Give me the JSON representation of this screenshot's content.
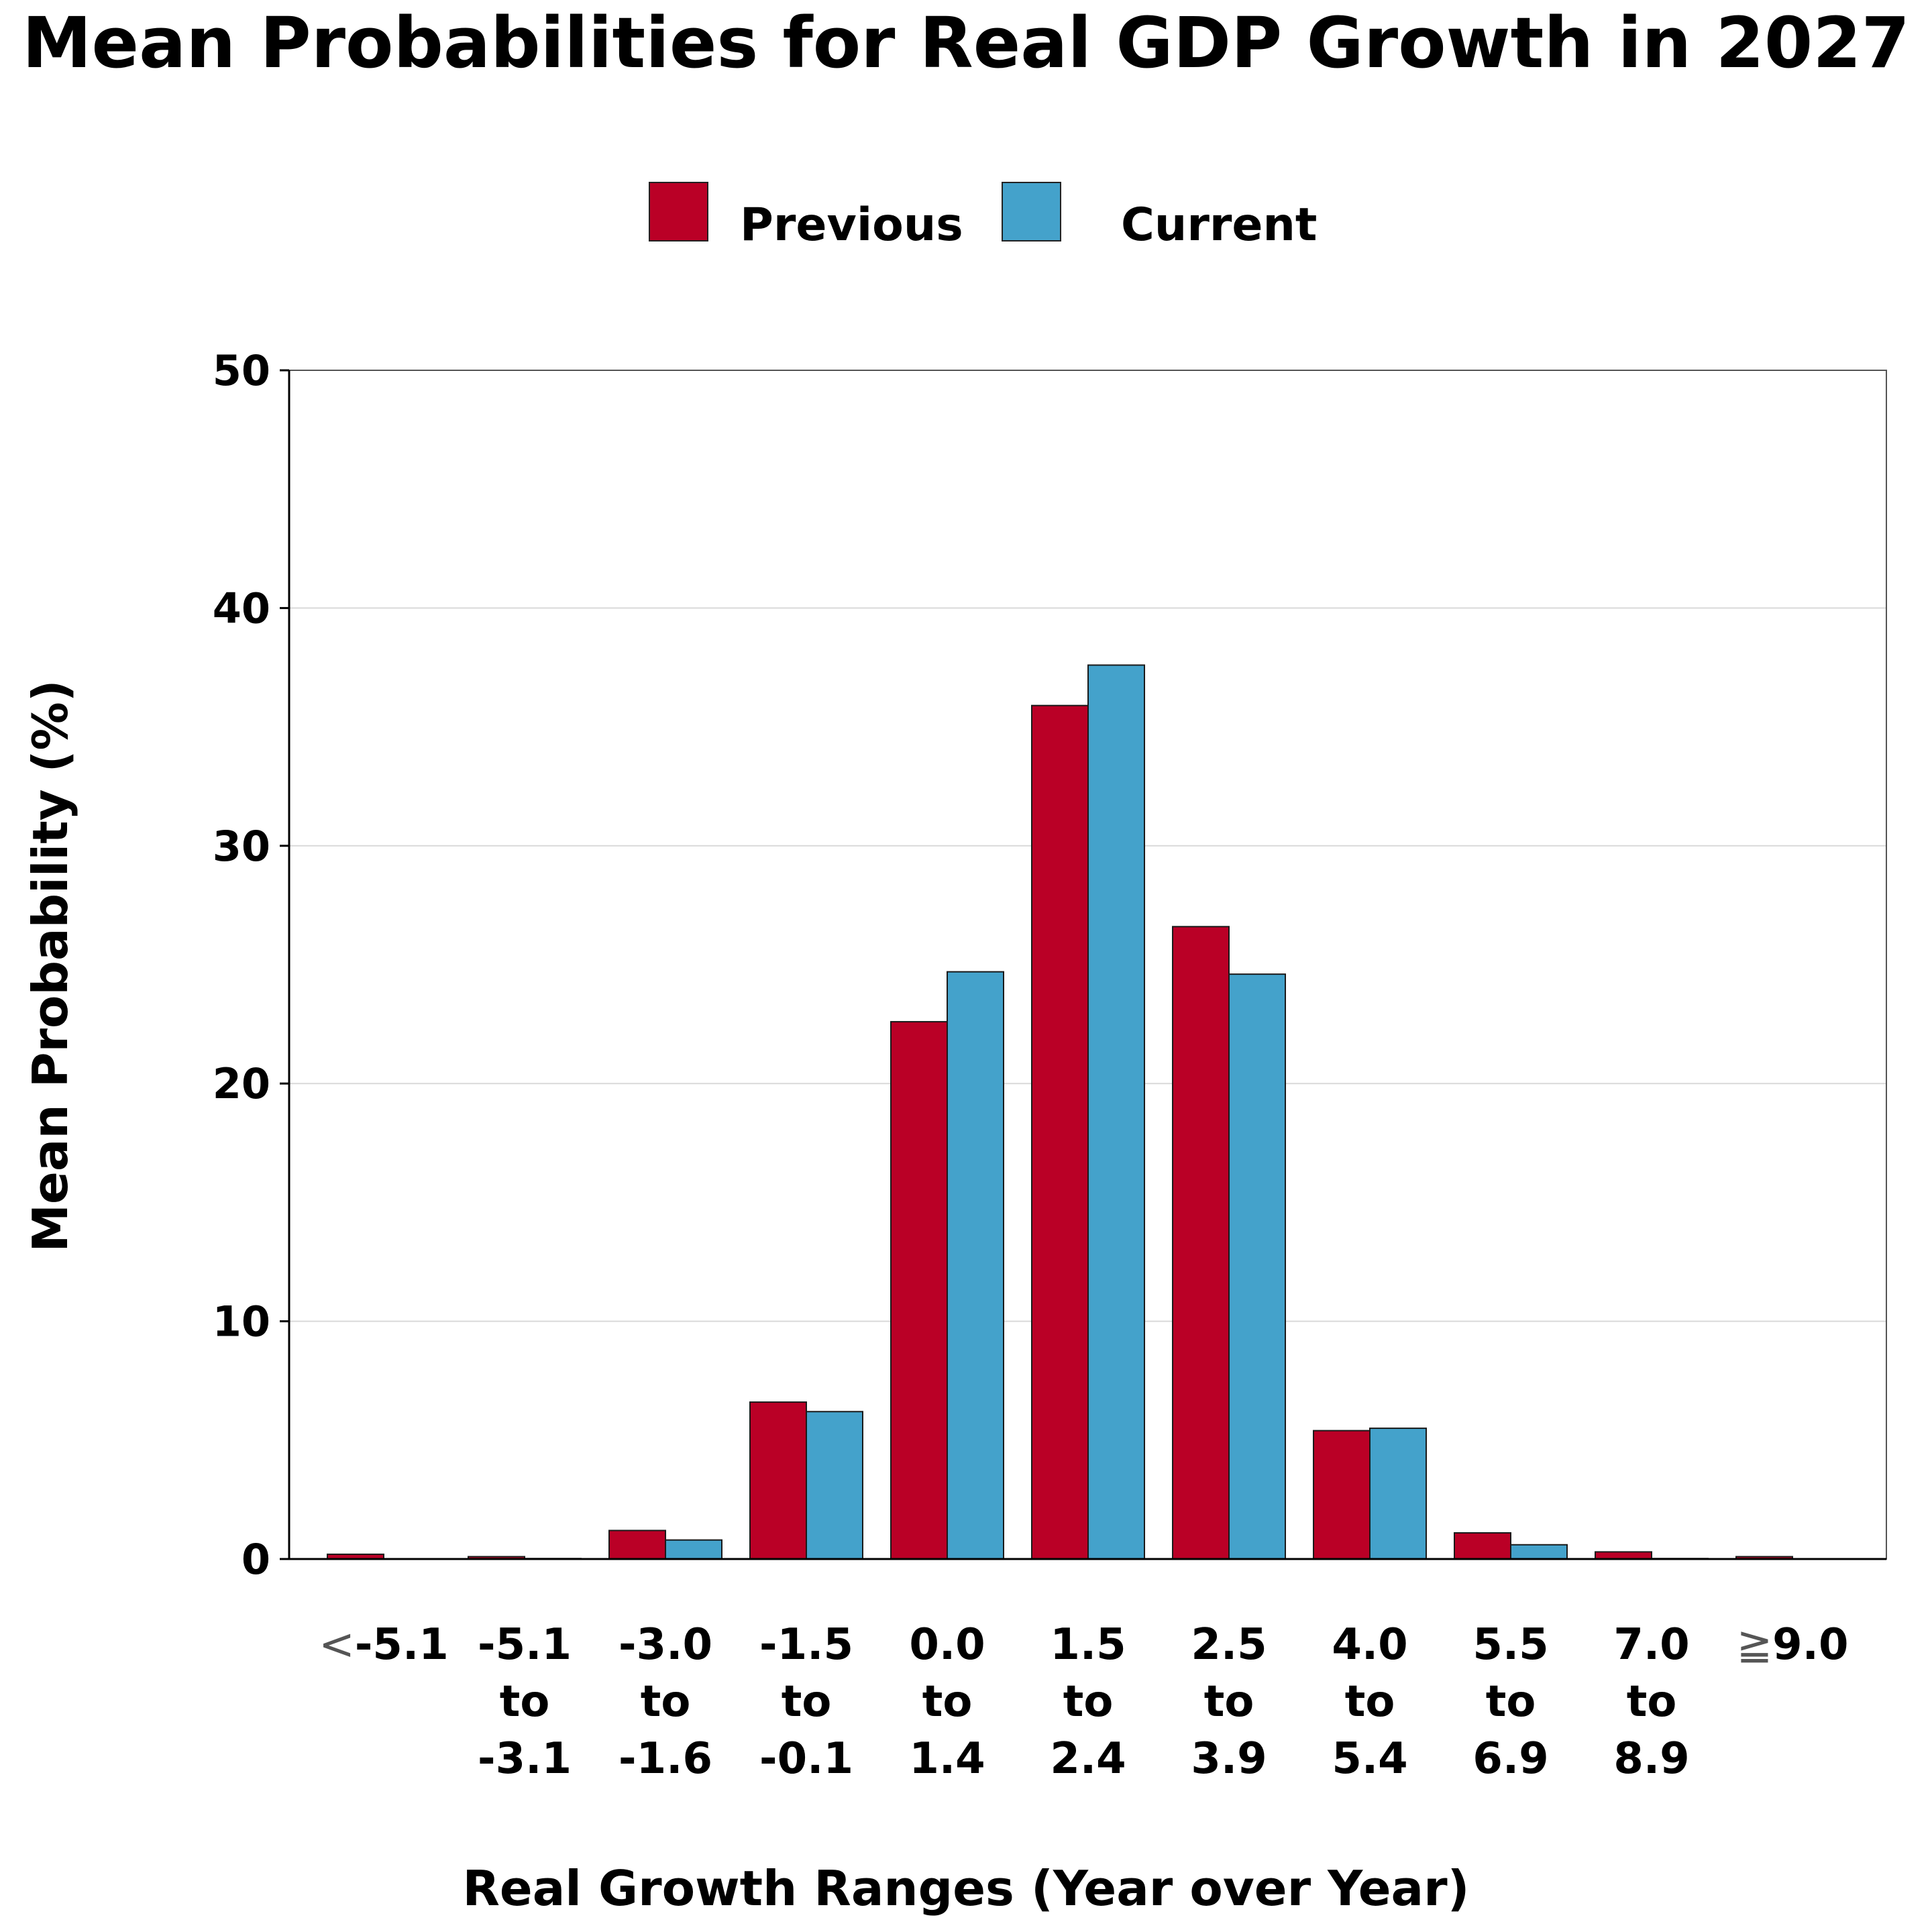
{
  "chart_data": {
    "type": "bar",
    "title": "Mean Probabilities for Real GDP Growth in 2027",
    "xlabel": "Real Growth Ranges (Year over Year)",
    "ylabel": "Mean Probability (%)",
    "ylim": [
      0,
      50
    ],
    "yticks": [
      0,
      10,
      20,
      30,
      40,
      50
    ],
    "ytick_labels": [
      "0",
      "10",
      "20",
      "30",
      "40",
      "50"
    ],
    "grid": "horizontal",
    "legend_position": "top-center",
    "categories": [
      {
        "symbol": "<",
        "lines": [
          "-5.1"
        ]
      },
      {
        "symbol": "",
        "lines": [
          "-5.1",
          "to",
          "-3.1"
        ]
      },
      {
        "symbol": "",
        "lines": [
          "-3.0",
          "to",
          "-1.6"
        ]
      },
      {
        "symbol": "",
        "lines": [
          "-1.5",
          "to",
          "-0.1"
        ]
      },
      {
        "symbol": "",
        "lines": [
          "0.0",
          "to",
          "1.4"
        ]
      },
      {
        "symbol": "",
        "lines": [
          "1.5",
          "to",
          "2.4"
        ]
      },
      {
        "symbol": "",
        "lines": [
          "2.5",
          "to",
          "3.9"
        ]
      },
      {
        "symbol": "",
        "lines": [
          "4.0",
          "to",
          "5.4"
        ]
      },
      {
        "symbol": "",
        "lines": [
          "5.5",
          "to",
          "6.9"
        ]
      },
      {
        "symbol": "",
        "lines": [
          "7.0",
          "to",
          "8.9"
        ]
      },
      {
        "symbol": "≧",
        "lines": [
          "9.0"
        ]
      }
    ],
    "series": [
      {
        "name": "Previous",
        "color": "#BA0026",
        "values": [
          0.2,
          0.1,
          1.2,
          6.6,
          22.6,
          35.9,
          26.6,
          5.4,
          1.1,
          0.3,
          0.1
        ]
      },
      {
        "name": "Current",
        "color": "#44A2CB",
        "values": [
          0.0,
          0.02,
          0.8,
          6.2,
          24.7,
          37.6,
          24.6,
          5.5,
          0.6,
          0.02,
          0.0
        ]
      }
    ]
  },
  "legend": {
    "items": [
      {
        "label": "Previous",
        "color": "#BA0026"
      },
      {
        "label": "Current",
        "color": "#44A2CB"
      }
    ]
  },
  "colors": {
    "bar_outline": "#1a1a1a",
    "gridline": "#d9d9d9",
    "axis": "#000000",
    "frame": "#555555"
  }
}
